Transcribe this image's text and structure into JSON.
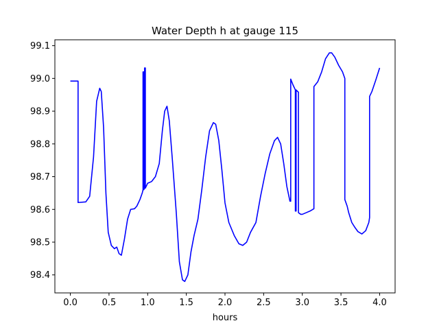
{
  "chart_data": {
    "type": "line",
    "title": "Water Depth h at gauge 115",
    "xlabel": "hours",
    "ylabel": "",
    "xlim": [
      -0.2,
      4.2
    ],
    "ylim": [
      98.345,
      99.118
    ],
    "xticks": [
      0.0,
      0.5,
      1.0,
      1.5,
      2.0,
      2.5,
      3.0,
      3.5,
      4.0
    ],
    "xtick_labels": [
      "0.0",
      "0.5",
      "1.0",
      "1.5",
      "2.0",
      "2.5",
      "3.0",
      "3.5",
      "4.0"
    ],
    "yticks": [
      98.4,
      98.5,
      98.6,
      98.7,
      98.8,
      98.9,
      99.0,
      99.1
    ],
    "ytick_labels": [
      "98.4",
      "98.5",
      "98.6",
      "98.7",
      "98.8",
      "98.9",
      "99.0",
      "99.1"
    ],
    "grid": false,
    "legend": "none",
    "series": [
      {
        "color": "#0000ff",
        "points": [
          [
            0.0,
            98.992
          ],
          [
            0.1,
            98.992
          ],
          [
            0.1,
            98.621
          ],
          [
            0.2,
            98.623
          ],
          [
            0.25,
            98.64
          ],
          [
            0.3,
            98.76
          ],
          [
            0.34,
            98.93
          ],
          [
            0.38,
            98.97
          ],
          [
            0.4,
            98.96
          ],
          [
            0.43,
            98.85
          ],
          [
            0.46,
            98.65
          ],
          [
            0.49,
            98.53
          ],
          [
            0.53,
            98.49
          ],
          [
            0.57,
            98.48
          ],
          [
            0.6,
            98.485
          ],
          [
            0.63,
            98.465
          ],
          [
            0.66,
            98.46
          ],
          [
            0.7,
            98.51
          ],
          [
            0.74,
            98.57
          ],
          [
            0.78,
            98.6
          ],
          [
            0.83,
            98.602
          ],
          [
            0.86,
            98.61
          ],
          [
            0.9,
            98.63
          ],
          [
            0.93,
            98.65
          ],
          [
            0.94,
            98.66
          ],
          [
            0.94,
            99.02
          ],
          [
            0.95,
            99.02
          ],
          [
            0.95,
            98.66
          ],
          [
            0.96,
            98.665
          ],
          [
            0.96,
            99.032
          ],
          [
            0.97,
            99.032
          ],
          [
            0.97,
            98.665
          ],
          [
            1.0,
            98.68
          ],
          [
            1.05,
            98.685
          ],
          [
            1.1,
            98.7
          ],
          [
            1.15,
            98.74
          ],
          [
            1.19,
            98.84
          ],
          [
            1.22,
            98.9
          ],
          [
            1.25,
            98.915
          ],
          [
            1.28,
            98.87
          ],
          [
            1.32,
            98.75
          ],
          [
            1.37,
            98.59
          ],
          [
            1.41,
            98.44
          ],
          [
            1.45,
            98.385
          ],
          [
            1.48,
            98.38
          ],
          [
            1.52,
            98.4
          ],
          [
            1.56,
            98.47
          ],
          [
            1.6,
            98.52
          ],
          [
            1.65,
            98.57
          ],
          [
            1.7,
            98.66
          ],
          [
            1.75,
            98.76
          ],
          [
            1.8,
            98.84
          ],
          [
            1.85,
            98.865
          ],
          [
            1.88,
            98.86
          ],
          [
            1.92,
            98.81
          ],
          [
            1.96,
            98.72
          ],
          [
            2.0,
            98.62
          ],
          [
            2.05,
            98.56
          ],
          [
            2.12,
            98.52
          ],
          [
            2.18,
            98.495
          ],
          [
            2.23,
            98.49
          ],
          [
            2.28,
            98.5
          ],
          [
            2.33,
            98.53
          ],
          [
            2.4,
            98.56
          ],
          [
            2.46,
            98.64
          ],
          [
            2.52,
            98.71
          ],
          [
            2.58,
            98.77
          ],
          [
            2.64,
            98.81
          ],
          [
            2.68,
            98.82
          ],
          [
            2.72,
            98.8
          ],
          [
            2.76,
            98.74
          ],
          [
            2.8,
            98.67
          ],
          [
            2.84,
            98.625
          ],
          [
            2.85,
            98.625
          ],
          [
            2.85,
            98.998
          ],
          [
            2.88,
            98.98
          ],
          [
            2.91,
            98.965
          ],
          [
            2.91,
            98.595
          ],
          [
            2.92,
            98.595
          ],
          [
            2.92,
            98.965
          ],
          [
            2.94,
            98.96
          ],
          [
            2.95,
            98.958
          ],
          [
            2.95,
            98.59
          ],
          [
            2.98,
            98.585
          ],
          [
            3.0,
            98.585
          ],
          [
            3.05,
            98.59
          ],
          [
            3.1,
            98.595
          ],
          [
            3.15,
            98.602
          ],
          [
            3.15,
            98.975
          ],
          [
            3.2,
            98.99
          ],
          [
            3.25,
            99.02
          ],
          [
            3.3,
            99.06
          ],
          [
            3.35,
            99.078
          ],
          [
            3.38,
            99.078
          ],
          [
            3.42,
            99.065
          ],
          [
            3.47,
            99.04
          ],
          [
            3.52,
            99.02
          ],
          [
            3.55,
            99.0
          ],
          [
            3.55,
            98.63
          ],
          [
            3.58,
            98.61
          ],
          [
            3.6,
            98.59
          ],
          [
            3.64,
            98.56
          ],
          [
            3.68,
            98.545
          ],
          [
            3.72,
            98.532
          ],
          [
            3.77,
            98.525
          ],
          [
            3.82,
            98.535
          ],
          [
            3.86,
            98.56
          ],
          [
            3.87,
            98.575
          ],
          [
            3.87,
            98.945
          ],
          [
            3.9,
            98.96
          ],
          [
            3.95,
            98.995
          ],
          [
            4.0,
            99.032
          ]
        ]
      }
    ]
  }
}
